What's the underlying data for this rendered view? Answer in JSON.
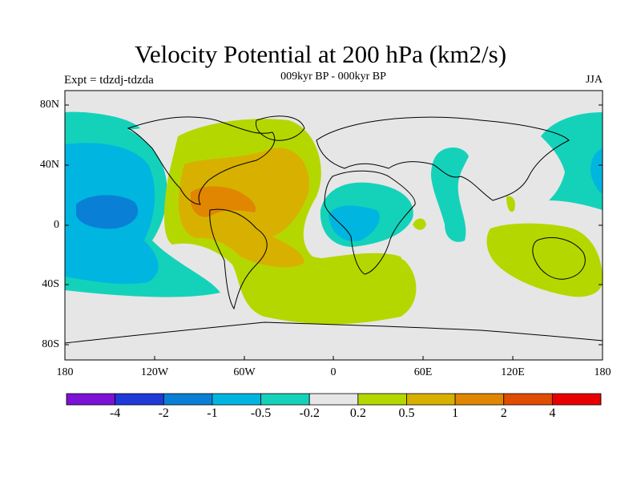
{
  "title": "Velocity Potential at 200 hPa (km2/s)",
  "left_label": "Expt = tdzdj-tdzda",
  "center_label": "009kyr BP - 000kyr BP",
  "right_label": "JJA",
  "y_axis_labels": [
    "80N",
    "40N",
    "0",
    "40S",
    "80S"
  ],
  "x_axis_labels": [
    "180",
    "120W",
    "60W",
    "0",
    "60E",
    "120E",
    "180"
  ],
  "colorbar": {
    "colors": [
      "#7b12d6",
      "#1f3ad8",
      "#0a7fd6",
      "#00b6e0",
      "#14d2b9",
      "#e6e6e6",
      "#b5d700",
      "#d8b000",
      "#e08600",
      "#e04c00",
      "#e80000"
    ],
    "labels": [
      "-4",
      "-2",
      "-1",
      "-0.5",
      "-0.2",
      "0.2",
      "0.5",
      "1",
      "2",
      "4"
    ]
  },
  "colors": {
    "land_neutral": "#e6e6e6",
    "coast": "#000000"
  }
}
